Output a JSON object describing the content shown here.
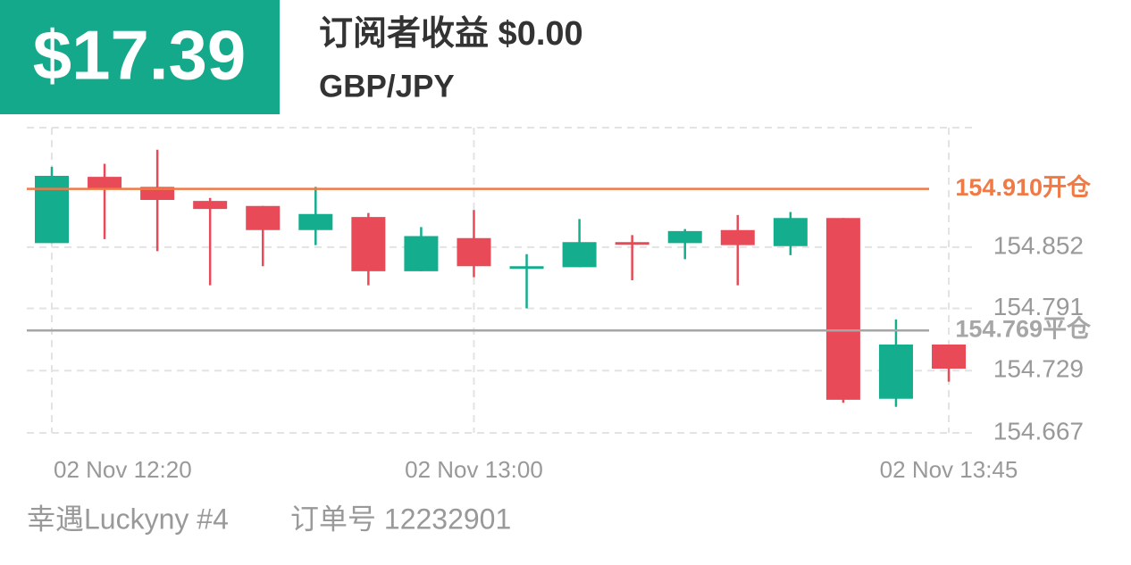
{
  "header": {
    "profit": "$17.39",
    "title": "订阅者收益 $0.00",
    "pair": "GBP/JPY"
  },
  "footer": {
    "user": "幸遇Luckyny #4",
    "order": "订单号 12232901"
  },
  "chart_data": {
    "type": "candlestick",
    "categories": [
      "02 Nov  12:20",
      null,
      null,
      null,
      null,
      null,
      null,
      null,
      "02 Nov  13:00",
      null,
      null,
      null,
      null,
      null,
      null,
      null,
      null,
      "02 Nov  13:45"
    ],
    "open": [
      154.856,
      154.922,
      154.912,
      154.898,
      154.893,
      154.869,
      154.882,
      154.828,
      154.861,
      154.831,
      154.832,
      154.857,
      154.856,
      154.869,
      154.853,
      154.881,
      154.701,
      154.755
    ],
    "high": [
      154.932,
      154.935,
      154.949,
      154.901,
      154.893,
      154.912,
      154.886,
      154.872,
      154.889,
      154.845,
      154.88,
      154.864,
      154.87,
      154.884,
      154.887,
      154.881,
      154.78,
      154.755
    ],
    "low": [
      154.856,
      154.86,
      154.848,
      154.814,
      154.833,
      154.854,
      154.814,
      154.828,
      154.822,
      154.791,
      154.832,
      154.819,
      154.84,
      154.814,
      154.844,
      154.697,
      154.693,
      154.718
    ],
    "close": [
      154.923,
      154.91,
      154.899,
      154.89,
      154.869,
      154.885,
      154.828,
      154.863,
      154.833,
      154.833,
      154.857,
      154.855,
      154.868,
      154.854,
      154.881,
      154.7,
      154.755,
      154.731
    ],
    "up_color": "#14ae8e",
    "down_color": "#e84a58",
    "ylim": [
      154.667,
      154.971
    ],
    "yticks": [
      154.667,
      154.729,
      154.791,
      154.852
    ],
    "grid": true,
    "open_line": {
      "value": 154.91,
      "label": "154.910开仓",
      "color": "#f07a46"
    },
    "close_line": {
      "value": 154.769,
      "label": "154.769平仓",
      "color": "#a6a6a6"
    }
  }
}
